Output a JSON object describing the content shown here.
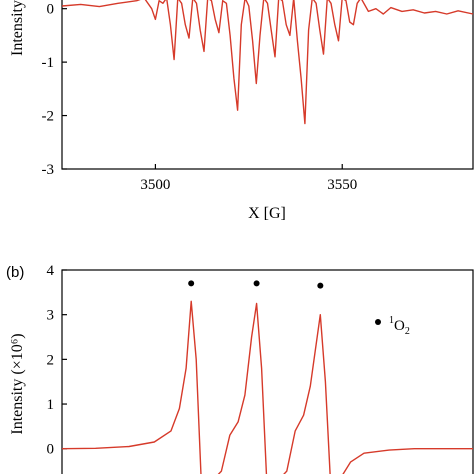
{
  "chart_data": [
    {
      "panel_label": "",
      "type": "line",
      "xlabel": "X [G]",
      "ylabel": "Intensity",
      "xlim": [
        3475,
        3585
      ],
      "ylim": [
        -3,
        0.2
      ],
      "x_ticks": [
        3500,
        3550
      ],
      "y_ticks": [
        0,
        -1,
        -2,
        -3
      ],
      "line_color": "#d63a2a",
      "series": [
        {
          "x": [
            3475,
            3480,
            3485,
            3490,
            3495,
            3497,
            3499,
            3500,
            3501,
            3502,
            3503,
            3504,
            3505,
            3506,
            3507,
            3508,
            3509,
            3510,
            3511,
            3512,
            3513,
            3514,
            3515,
            3516,
            3517,
            3518,
            3519,
            3520,
            3521,
            3522,
            3523,
            3524,
            3525,
            3526,
            3527,
            3528,
            3529,
            3530,
            3531,
            3532,
            3533,
            3534,
            3535,
            3536,
            3537,
            3538,
            3539,
            3540,
            3541,
            3542,
            3543,
            3544,
            3545,
            3546,
            3547,
            3548,
            3549,
            3550,
            3551,
            3552,
            3553,
            3554,
            3555,
            3557,
            3559,
            3561,
            3563,
            3566,
            3569,
            3572,
            3575,
            3578,
            3581,
            3585
          ],
          "y": [
            0.05,
            0.08,
            0.04,
            0.1,
            0.15,
            0.2,
            0.0,
            -0.2,
            0.15,
            0.1,
            0.2,
            -0.3,
            -0.95,
            0.2,
            0.1,
            -0.3,
            -0.55,
            0.2,
            0.1,
            -0.4,
            -0.8,
            0.2,
            0.15,
            -0.2,
            -0.45,
            0.15,
            0.1,
            -0.5,
            -1.3,
            -1.9,
            -0.3,
            0.2,
            0.05,
            -0.6,
            -1.4,
            -0.5,
            0.2,
            0.1,
            -0.4,
            -0.9,
            0.2,
            0.15,
            -0.3,
            -0.5,
            0.2,
            -0.6,
            -1.3,
            -2.15,
            -0.4,
            0.2,
            0.1,
            -0.4,
            -0.85,
            0.2,
            0.1,
            -0.3,
            -0.6,
            0.2,
            0.15,
            -0.25,
            -0.3,
            0.1,
            0.2,
            -0.05,
            0.0,
            -0.1,
            0.02,
            -0.05,
            -0.02,
            -0.08,
            -0.05,
            -0.1,
            -0.04,
            -0.1
          ]
        }
      ]
    },
    {
      "panel_label": "(b)",
      "type": "line",
      "xlabel": "",
      "ylabel": "Intensity (×10⁶)",
      "ylim": [
        -0.7,
        4
      ],
      "y_ticks": [
        0,
        1,
        2,
        3,
        4
      ],
      "line_color": "#d63a2a",
      "legend": [
        {
          "marker": "●",
          "label": "¹O₂"
        }
      ],
      "marker_peaks": [
        3.7,
        3.7,
        3.65
      ],
      "series": [
        {
          "x": [
            0,
            2,
            4,
            5.5,
            6.5,
            7.0,
            7.4,
            7.7,
            8.0,
            8.3,
            8.6,
            9.0,
            9.5,
            10.0,
            10.5,
            10.9,
            11.3,
            11.6,
            11.9,
            12.2,
            12.5,
            12.9,
            13.4,
            13.9,
            14.4,
            14.8,
            15.1,
            15.4,
            15.7,
            16.0,
            16.3,
            16.7,
            17.2,
            18.0,
            19.5,
            21,
            22.5,
            24.5
          ],
          "y": [
            0,
            0.01,
            0.05,
            0.15,
            0.4,
            0.9,
            1.8,
            3.3,
            2.0,
            -0.7,
            -0.7,
            -0.7,
            -0.5,
            0.3,
            0.6,
            1.2,
            2.5,
            3.25,
            1.8,
            -0.7,
            -0.7,
            -0.7,
            -0.5,
            0.4,
            0.75,
            1.4,
            2.2,
            3.0,
            1.5,
            -0.7,
            -0.7,
            -0.6,
            -0.3,
            -0.1,
            -0.03,
            0,
            0,
            0
          ]
        }
      ]
    }
  ]
}
